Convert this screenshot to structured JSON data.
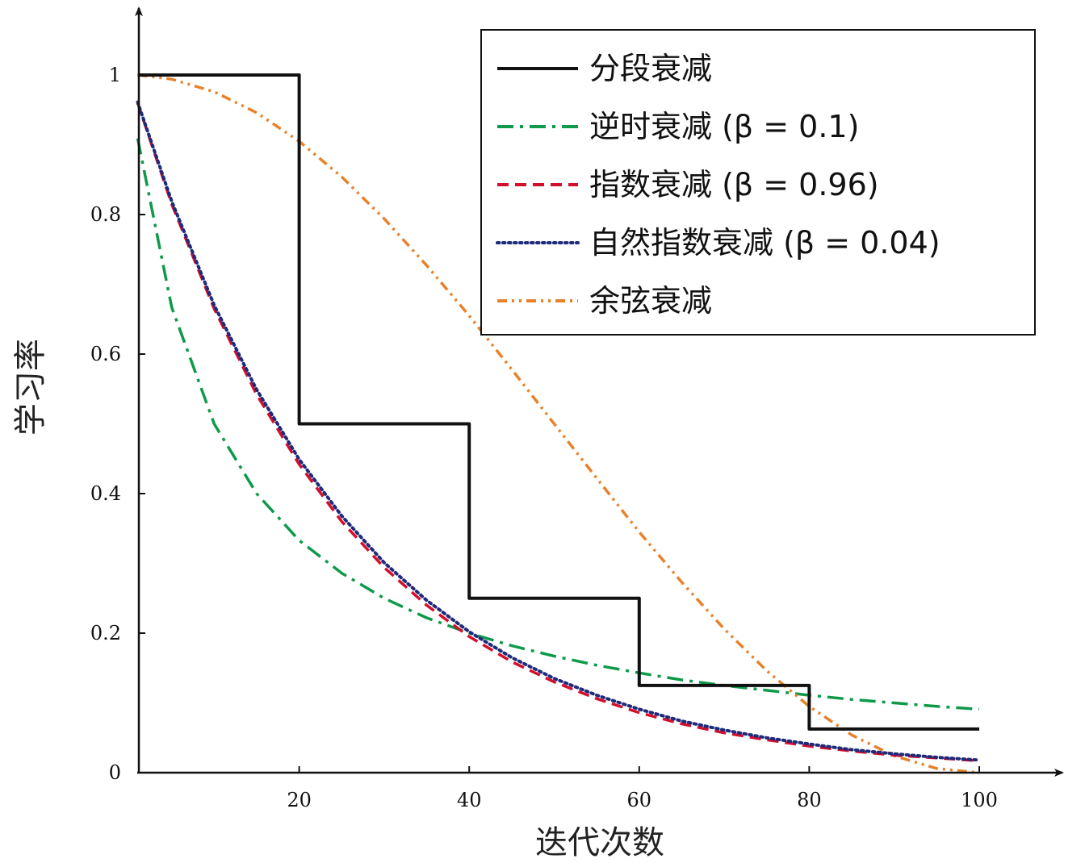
{
  "chart_data": {
    "type": "line",
    "title": "",
    "xlabel": "迭代次数",
    "ylabel": "学习率",
    "xlim": [
      0,
      105
    ],
    "ylim": [
      0,
      1.05
    ],
    "x_ticks": [
      20,
      40,
      60,
      80,
      100
    ],
    "x_tick_labels": [
      "20",
      "40",
      "60",
      "80",
      "100"
    ],
    "y_ticks": [
      0,
      0.2,
      0.4,
      0.6,
      0.8,
      1
    ],
    "y_tick_labels": [
      "0",
      "0.2",
      "0.4",
      "0.6",
      "0.8",
      "1"
    ],
    "grid": false,
    "legend_position": "top-right",
    "series": [
      {
        "name": "分段衰减",
        "color": "#111111",
        "style": "solid",
        "step": true,
        "x": [
          1,
          20,
          20,
          40,
          40,
          60,
          60,
          80,
          80,
          100
        ],
        "y": [
          1,
          1,
          0.5,
          0.5,
          0.25,
          0.25,
          0.125,
          0.125,
          0.0625,
          0.0625
        ]
      },
      {
        "name": "逆时衰减 (β = 0.1)",
        "color": "#0e9a4a",
        "style": "dashdot",
        "x": [
          1,
          5,
          10,
          15,
          20,
          25,
          30,
          35,
          40,
          45,
          50,
          55,
          60,
          65,
          70,
          75,
          80,
          85,
          90,
          95,
          100
        ],
        "y": [
          0.909,
          0.667,
          0.5,
          0.4,
          0.333,
          0.286,
          0.25,
          0.222,
          0.2,
          0.182,
          0.167,
          0.154,
          0.143,
          0.133,
          0.125,
          0.118,
          0.111,
          0.105,
          0.1,
          0.095,
          0.091
        ]
      },
      {
        "name": "指数衰减 (β = 0.96)",
        "color": "#d0102c",
        "style": "dashed",
        "x": [
          1,
          5,
          10,
          15,
          20,
          25,
          30,
          35,
          40,
          45,
          50,
          55,
          60,
          65,
          70,
          75,
          80,
          85,
          90,
          95,
          100
        ],
        "y": [
          0.96,
          0.815,
          0.665,
          0.542,
          0.442,
          0.36,
          0.294,
          0.24,
          0.195,
          0.159,
          0.13,
          0.106,
          0.086,
          0.07,
          0.057,
          0.047,
          0.038,
          0.031,
          0.025,
          0.021,
          0.017
        ]
      },
      {
        "name": "自然指数衰减 (β = 0.04)",
        "color": "#1f2a7a",
        "style": "dotted",
        "x": [
          1,
          5,
          10,
          15,
          20,
          25,
          30,
          35,
          40,
          45,
          50,
          55,
          60,
          65,
          70,
          75,
          80,
          85,
          90,
          95,
          100
        ],
        "y": [
          0.961,
          0.819,
          0.67,
          0.549,
          0.449,
          0.368,
          0.301,
          0.247,
          0.202,
          0.165,
          0.135,
          0.111,
          0.091,
          0.074,
          0.061,
          0.05,
          0.041,
          0.033,
          0.027,
          0.022,
          0.018
        ]
      },
      {
        "name": "余弦衰减",
        "color": "#e8822a",
        "style": "dashdotdot",
        "x": [
          1,
          5,
          10,
          15,
          20,
          25,
          30,
          35,
          40,
          45,
          50,
          55,
          60,
          65,
          70,
          75,
          80,
          85,
          90,
          95,
          100
        ],
        "y": [
          1.0,
          0.994,
          0.976,
          0.946,
          0.905,
          0.854,
          0.794,
          0.727,
          0.655,
          0.578,
          0.5,
          0.422,
          0.345,
          0.273,
          0.206,
          0.146,
          0.095,
          0.054,
          0.024,
          0.006,
          0.0
        ]
      }
    ]
  }
}
